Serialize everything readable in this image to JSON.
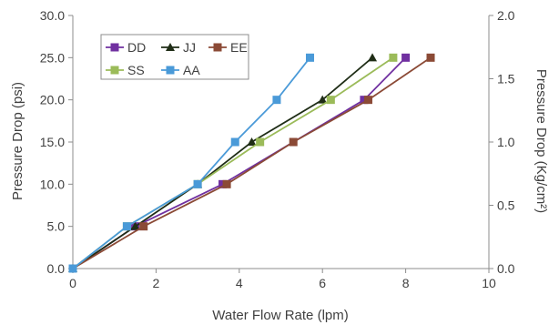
{
  "chart_data": {
    "type": "line",
    "title": "",
    "xlabel": "Water Flow Rate (lpm)",
    "ylabel": "Pressure Drop (psi)",
    "y2label": "Pressure Drop (Kg/cm²)",
    "xlim": [
      0,
      10
    ],
    "ylim": [
      0,
      30
    ],
    "y2lim": [
      0,
      2.0
    ],
    "xticks": [
      "0",
      "2",
      "4",
      "6",
      "8",
      "10"
    ],
    "yticks": [
      "0.0",
      "5.0",
      "10.0",
      "15.0",
      "20.0",
      "25.0",
      "30.0"
    ],
    "y2ticks": [
      "0.0",
      "0.5",
      "1.0",
      "1.5",
      "2.0"
    ],
    "grid": false,
    "legend_position": "top-left",
    "series": [
      {
        "name": "DD",
        "color": "#7030a0",
        "marker": "square",
        "x": [
          0,
          1.5,
          3.6,
          7.0,
          8.0
        ],
        "y": [
          0,
          5,
          10,
          20,
          25
        ]
      },
      {
        "name": "JJ",
        "color": "#1f2d16",
        "marker": "triangle",
        "x": [
          0,
          1.5,
          3.0,
          4.3,
          6.0,
          7.2
        ],
        "y": [
          0,
          5,
          10,
          15,
          20,
          25
        ]
      },
      {
        "name": "EE",
        "color": "#8b4a36",
        "marker": "square",
        "x": [
          0,
          1.7,
          3.7,
          5.3,
          7.1,
          8.6
        ],
        "y": [
          0,
          5,
          10,
          15,
          20,
          25
        ]
      },
      {
        "name": "SS",
        "color": "#9bbb59",
        "marker": "square",
        "x": [
          0,
          1.3,
          3.0,
          4.5,
          6.2,
          7.7
        ],
        "y": [
          0,
          5,
          10,
          15,
          20,
          25
        ]
      },
      {
        "name": "AA",
        "color": "#4a9ad8",
        "marker": "square",
        "x": [
          0,
          1.3,
          3.0,
          3.9,
          4.9,
          5.7
        ],
        "y": [
          0,
          5,
          10,
          15,
          20,
          25
        ]
      }
    ]
  }
}
